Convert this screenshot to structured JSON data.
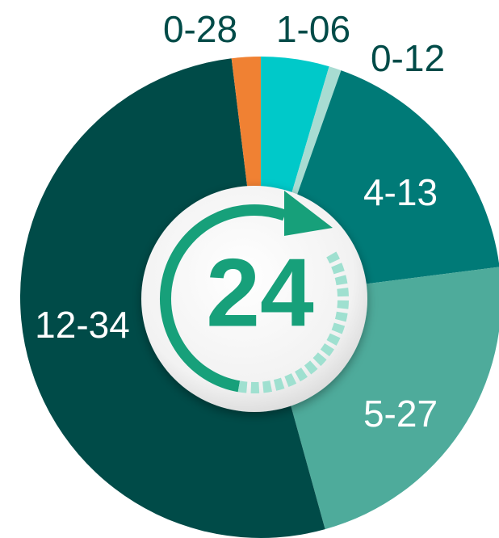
{
  "chart_data": {
    "type": "pie",
    "values": [
      66,
      12,
      253,
      327,
      754,
      28
    ],
    "value_labels": [
      "1-06",
      "0-12",
      "4-13",
      "5-27",
      "12-34",
      "0-28"
    ],
    "colors": [
      "#00c9c9",
      "#a8dcd2",
      "#007a77",
      "#4eab9b",
      "#004b48",
      "#f08133"
    ],
    "center_text": "24"
  }
}
